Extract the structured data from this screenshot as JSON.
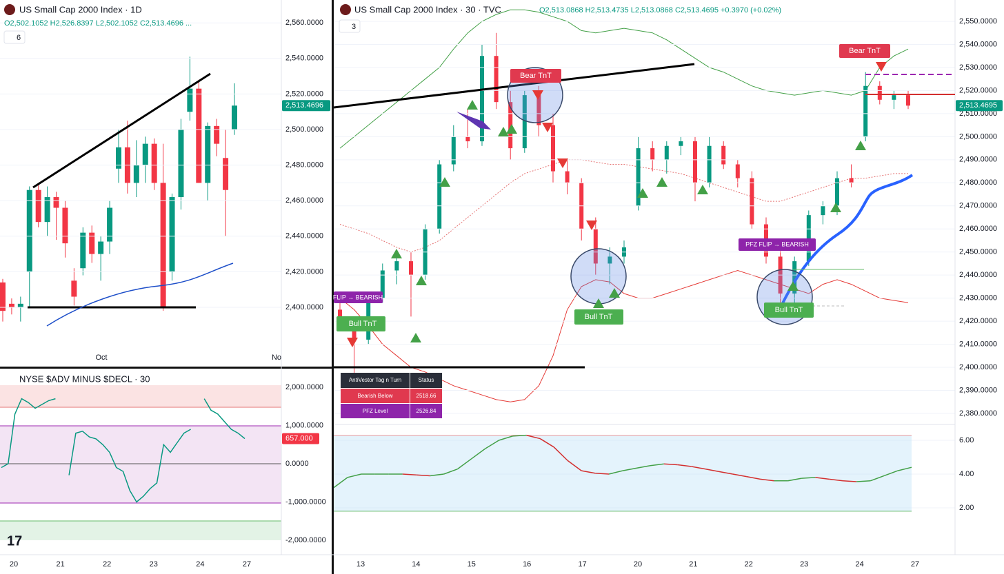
{
  "left_chart": {
    "title": "US Small Cap 2000 Index · 1D",
    "ohlc": "O2,502.1052 H2,526.8397 L2,502.1052 C2,513.4696 ...",
    "indicator_count": "6",
    "ticks": [
      {
        "value": 2400,
        "label": "2,400.0000"
      },
      {
        "value": 2420,
        "label": "2,420.0000"
      },
      {
        "value": 2440,
        "label": "2,440.0000"
      },
      {
        "value": 2460,
        "label": "2,460.0000"
      },
      {
        "value": 2480,
        "label": "2,480.0000"
      },
      {
        "value": 2500,
        "label": "2,500.0000"
      },
      {
        "value": 2520,
        "label": "2,520.0000"
      },
      {
        "value": 2540,
        "label": "2,540.0000"
      },
      {
        "value": 2560,
        "label": "2,560.0000"
      }
    ],
    "last_price": {
      "value": 2513.4696,
      "label": "2,513.4696"
    },
    "x_labels": [
      "Oct",
      "No"
    ],
    "candles": [
      [
        2414,
        2416,
        2392,
        2398
      ],
      [
        2402,
        2405,
        2396,
        2400
      ],
      [
        2400,
        2406,
        2392,
        2402
      ],
      [
        2420,
        2468,
        2400,
        2466
      ],
      [
        2466,
        2470,
        2445,
        2448
      ],
      [
        2448,
        2468,
        2440,
        2462
      ],
      [
        2462,
        2465,
        2438,
        2456
      ],
      [
        2456,
        2460,
        2428,
        2436
      ],
      [
        2415,
        2422,
        2401,
        2406
      ],
      [
        2422,
        2445,
        2418,
        2442
      ],
      [
        2442,
        2446,
        2425,
        2430
      ],
      [
        2430,
        2440,
        2415,
        2437
      ],
      [
        2437,
        2460,
        2430,
        2456
      ],
      [
        2478,
        2500,
        2470,
        2490
      ],
      [
        2490,
        2505,
        2464,
        2470
      ],
      [
        2470,
        2494,
        2462,
        2480
      ],
      [
        2480,
        2496,
        2470,
        2492
      ],
      [
        2492,
        2495,
        2466,
        2470
      ],
      [
        2470,
        2492,
        2398,
        2400
      ],
      [
        2420,
        2464,
        2415,
        2462
      ],
      [
        2462,
        2506,
        2455,
        2500
      ],
      [
        2510,
        2541,
        2505,
        2523
      ],
      [
        2523,
        2528,
        2470,
        2470
      ],
      [
        2470,
        2504,
        2460,
        2502
      ],
      [
        2502,
        2506,
        2485,
        2492
      ],
      [
        2484,
        2500,
        2440,
        2466
      ],
      [
        2500,
        2526,
        2497,
        2513.4696
      ]
    ]
  },
  "breadth_chart": {
    "title": "NYSE $ADV MINUS $DECL · 30",
    "ticks": [
      {
        "value": 2000,
        "label": "2,000.0000"
      },
      {
        "value": 1000,
        "label": "1,000.0000"
      },
      {
        "value": 0,
        "label": "0.0000"
      },
      {
        "value": -1000,
        "label": "-1,000.0000"
      },
      {
        "value": -2000,
        "label": "-2,000.0000"
      }
    ],
    "last_value": {
      "value": 657,
      "label": "657.000"
    },
    "x_labels": [
      "20",
      "21",
      "22",
      "23",
      "24",
      "27"
    ],
    "values": [
      -100,
      0,
      1300,
      1700,
      1600,
      1450,
      1550,
      1650,
      1700,
      null,
      -300,
      800,
      850,
      700,
      650,
      500,
      300,
      -100,
      -200,
      -700,
      -1000,
      -850,
      -650,
      -500,
      500,
      300,
      550,
      800,
      900,
      null,
      1700,
      1400,
      1300,
      1100,
      900,
      800,
      657
    ]
  },
  "main_chart": {
    "title": "US Small Cap 2000 Index · 30 · TVC",
    "ohlc": "O2,513.0868 H2,513.4735 L2,513.0868 C2,513.4695 +0.3970 (+0.02%)",
    "indicator_count": "3",
    "ticks": [
      {
        "value": 2380,
        "label": "2,380.0000"
      },
      {
        "value": 2390,
        "label": "2,390.0000"
      },
      {
        "value": 2400,
        "label": "2,400.0000"
      },
      {
        "value": 2410,
        "label": "2,410.0000"
      },
      {
        "value": 2420,
        "label": "2,420.0000"
      },
      {
        "value": 2430,
        "label": "2,430.0000"
      },
      {
        "value": 2440,
        "label": "2,440.0000"
      },
      {
        "value": 2450,
        "label": "2,450.0000"
      },
      {
        "value": 2460,
        "label": "2,460.0000"
      },
      {
        "value": 2470,
        "label": "2,470.0000"
      },
      {
        "value": 2480,
        "label": "2,480.0000"
      },
      {
        "value": 2490,
        "label": "2,490.0000"
      },
      {
        "value": 2500,
        "label": "2,500.0000"
      },
      {
        "value": 2510,
        "label": "2,510.0000"
      },
      {
        "value": 2520,
        "label": "2,520.0000"
      },
      {
        "value": 2530,
        "label": "2,530.0000"
      },
      {
        "value": 2540,
        "label": "2,540.0000"
      },
      {
        "value": 2550,
        "label": "2,550.0000"
      }
    ],
    "last_price": {
      "value": 2513.4695,
      "label": "2,513.4695"
    },
    "x_labels": [
      "13",
      "14",
      "15",
      "16",
      "17",
      "20",
      "21",
      "22",
      "23",
      "24",
      "27"
    ],
    "candles": [
      [
        2425,
        2428,
        2418,
        2420
      ],
      [
        2420,
        2422,
        2396,
        2412
      ],
      [
        2412,
        2432,
        2410,
        2430
      ],
      [
        2430,
        2445,
        2428,
        2442
      ],
      [
        2442,
        2448,
        2436,
        2446
      ],
      [
        2446,
        2450,
        2422,
        2440
      ],
      [
        2440,
        2462,
        2438,
        2460
      ],
      [
        2460,
        2490,
        2458,
        2488
      ],
      [
        2488,
        2505,
        2485,
        2500
      ],
      [
        2500,
        2512,
        2495,
        2498
      ],
      [
        2498,
        2540,
        2496,
        2535
      ],
      [
        2535,
        2545,
        2512,
        2515
      ],
      [
        2515,
        2520,
        2490,
        2495
      ],
      [
        2495,
        2520,
        2493,
        2518
      ],
      [
        2518,
        2522,
        2500,
        2505
      ],
      [
        2505,
        2510,
        2480,
        2485
      ],
      [
        2485,
        2490,
        2475,
        2480
      ],
      [
        2480,
        2482,
        2455,
        2460
      ],
      [
        2460,
        2465,
        2440,
        2445
      ],
      [
        2445,
        2452,
        2436,
        2448
      ],
      [
        2448,
        2455,
        2445,
        2452
      ],
      [
        2470,
        2500,
        2468,
        2495
      ],
      [
        2495,
        2498,
        2485,
        2490
      ],
      [
        2490,
        2498,
        2484,
        2496
      ],
      [
        2496,
        2500,
        2492,
        2498
      ],
      [
        2498,
        2500,
        2472,
        2480
      ],
      [
        2480,
        2500,
        2478,
        2496
      ],
      [
        2496,
        2498,
        2486,
        2488
      ],
      [
        2488,
        2490,
        2478,
        2482
      ],
      [
        2482,
        2485,
        2460,
        2462
      ],
      [
        2462,
        2465,
        2445,
        2448
      ],
      [
        2448,
        2452,
        2428,
        2432
      ],
      [
        2432,
        2448,
        2426,
        2446
      ],
      [
        2446,
        2468,
        2444,
        2466
      ],
      [
        2466,
        2472,
        2462,
        2470
      ],
      [
        2470,
        2485,
        2466,
        2482
      ],
      [
        2482,
        2488,
        2478,
        2480
      ],
      [
        2500,
        2528,
        2498,
        2522
      ],
      [
        2522,
        2524,
        2514,
        2516
      ],
      [
        2516,
        2520,
        2512,
        2518
      ],
      [
        2518,
        2520,
        2512,
        2513.4695
      ]
    ],
    "upper_band": [
      2495,
      2500,
      2505,
      2510,
      2515,
      2520,
      2525,
      2530,
      2538,
      2545,
      2550,
      2553,
      2555,
      2555,
      2554,
      2552,
      2550,
      2546,
      2545,
      2546,
      2547,
      2546,
      2545,
      2542,
      2538,
      2534,
      2530,
      2528,
      2525,
      2522,
      2520,
      2519,
      2518,
      2519,
      2520,
      2519,
      2518,
      2520,
      2530,
      2535,
      2538
    ],
    "lower_band": [
      2430,
      2425,
      2418,
      2410,
      2405,
      2400,
      2398,
      2395,
      2392,
      2390,
      2388,
      2386,
      2385,
      2386,
      2392,
      2405,
      2425,
      2435,
      2438,
      2437,
      2432,
      2430,
      2430,
      2432,
      2434,
      2436,
      2438,
      2440,
      2442,
      2440,
      2438,
      2436,
      2434,
      2432,
      2436,
      2438,
      2436,
      2433,
      2430,
      2429,
      2428
    ],
    "basis": [
      2462,
      2460,
      2458,
      2455,
      2452,
      2450,
      2452,
      2455,
      2460,
      2465,
      2470,
      2475,
      2480,
      2484,
      2486,
      2488,
      2490,
      2490,
      2489,
      2488,
      2488,
      2487,
      2486,
      2485,
      2484,
      2482,
      2480,
      2478,
      2476,
      2474,
      2472,
      2472,
      2474,
      2476,
      2478,
      2480,
      2482,
      2482,
      2483,
      2484,
      2484
    ],
    "signals": [
      "Bear TnT",
      "Bear TnT",
      "Bull TnT",
      "Bull TnT",
      "Bull TnT",
      "FLIP → BEARISH",
      "PFZ FLIP → BEARISH"
    ],
    "table": {
      "header": [
        "AntiVestor Tag n Turn",
        "Status"
      ],
      "rows": [
        [
          "Bearish Below",
          "2518.66"
        ],
        [
          "PFZ Level",
          "2526.84"
        ]
      ]
    }
  },
  "oscillator": {
    "ticks": [
      {
        "value": 6,
        "label": "6.00"
      },
      {
        "value": 4,
        "label": "4.00"
      },
      {
        "value": 2,
        "label": "2.00"
      }
    ],
    "upper": 6.3,
    "lower": 1.8,
    "values": [
      3.2,
      3.8,
      4.0,
      4.0,
      4.0,
      4.0,
      3.95,
      3.9,
      4.0,
      4.3,
      4.9,
      5.5,
      6.0,
      6.25,
      6.3,
      6.1,
      5.6,
      4.8,
      4.2,
      4.05,
      4.0,
      4.2,
      4.35,
      4.5,
      4.6,
      4.55,
      4.45,
      4.3,
      4.15,
      4.0,
      3.85,
      3.7,
      3.6,
      3.6,
      3.75,
      3.8,
      3.7,
      3.6,
      3.55,
      3.6,
      3.9,
      4.2,
      4.4
    ]
  }
}
